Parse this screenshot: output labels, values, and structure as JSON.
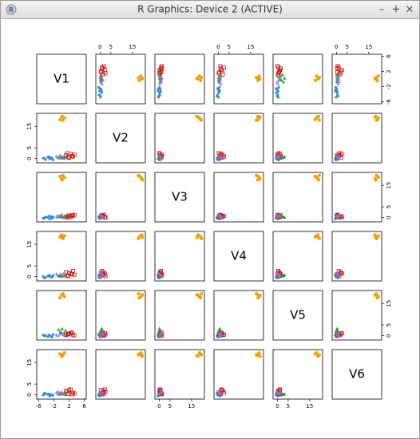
{
  "window": {
    "title": "R Graphics: Device 2 (ACTIVE)",
    "controls": [
      "–",
      "+",
      "×"
    ]
  },
  "chart_data": {
    "type": "pairs",
    "variables": [
      "V1",
      "V2",
      "V3",
      "V4",
      "V5",
      "V6"
    ],
    "lims": [
      [
        -6.5,
        6.5
      ],
      [
        -2,
        21
      ],
      [
        -2,
        21
      ],
      [
        -2,
        21
      ],
      [
        -2,
        21
      ],
      [
        -2,
        21
      ]
    ],
    "ticks": [
      [
        -6,
        -2,
        2,
        6
      ],
      [
        0,
        5,
        15
      ],
      [
        0,
        5,
        15
      ],
      [
        0,
        5,
        15
      ],
      [
        0,
        5,
        15
      ],
      [
        0,
        5,
        15
      ]
    ],
    "groups": [
      {
        "color": "#2c8de0",
        "shape": "circle",
        "points": [
          [
            -4.8,
            0.2,
            -0.3,
            0.1,
            0.4,
            -0.2
          ],
          [
            -4.2,
            -0.5,
            0.3,
            -0.4,
            0.1,
            0.5
          ],
          [
            -3.6,
            0.6,
            0.1,
            0.3,
            -0.5,
            0.2
          ],
          [
            -3.1,
            -0.2,
            -0.6,
            0.7,
            0.2,
            -0.6
          ],
          [
            -2.7,
            0.4,
            0.5,
            -0.1,
            -0.3,
            0.1
          ],
          [
            -2.2,
            -0.7,
            0.2,
            0.5,
            0.6,
            -0.3
          ],
          [
            -4.5,
            0.1,
            -0.2,
            -0.6,
            -0.1,
            0.7
          ],
          [
            -3.3,
            0.8,
            0.7,
            0.2,
            0.3,
            0.4
          ],
          [
            -2.5,
            0.0,
            -0.4,
            -0.3,
            -0.6,
            -0.1
          ]
        ]
      },
      {
        "color": "#d01010",
        "shape": "square-open",
        "points": [
          [
            1.2,
            1.5,
            0.4,
            2.1,
            0.3,
            1.8
          ],
          [
            1.8,
            0.6,
            1.0,
            0.5,
            0.8,
            0.4
          ],
          [
            2.4,
            2.2,
            0.2,
            1.4,
            1.2,
            2.5
          ],
          [
            3.0,
            0.9,
            0.8,
            2.6,
            0.5,
            1.0
          ],
          [
            3.4,
            1.8,
            1.3,
            0.9,
            0.1,
            0.6
          ],
          [
            2.0,
            0.3,
            0.6,
            1.8,
            1.0,
            2.2
          ],
          [
            1.5,
            2.5,
            0.1,
            0.2,
            0.6,
            1.3
          ],
          [
            2.8,
            1.2,
            1.1,
            1.1,
            1.5,
            0.2
          ]
        ]
      },
      {
        "color": "#22a022",
        "shape": "triangle",
        "points": [
          [
            -0.8,
            0.5,
            0.3,
            0.4,
            2.8,
            0.2
          ],
          [
            -0.3,
            0.2,
            0.8,
            0.1,
            1.9,
            0.6
          ],
          [
            0.2,
            0.8,
            0.1,
            0.7,
            3.3,
            0.3
          ],
          [
            0.7,
            0.1,
            0.6,
            0.3,
            1.4,
            0.8
          ],
          [
            1.1,
            0.6,
            0.4,
            0.9,
            2.4,
            0.1
          ],
          [
            0.0,
            0.3,
            0.9,
            0.2,
            1.1,
            0.5
          ]
        ]
      },
      {
        "color": "#8a6fd6",
        "shape": "cross",
        "points": [
          [
            -1.4,
            0.9,
            0.2,
            1.2,
            0.3,
            0.8
          ],
          [
            -0.9,
            0.3,
            1.0,
            0.4,
            -0.2,
            1.3
          ],
          [
            -0.4,
            1.3,
            0.5,
            0.9,
            0.6,
            0.1
          ],
          [
            0.1,
            0.0,
            1.4,
            0.0,
            0.9,
            0.9
          ],
          [
            0.6,
            0.7,
            0.0,
            1.5,
            0.1,
            0.4
          ],
          [
            -0.2,
            1.1,
            0.7,
            0.6,
            1.2,
            1.1
          ]
        ]
      },
      {
        "color": "#f0a000",
        "shape": "square",
        "points": [
          [
            -0.4,
            18.1,
            19.2,
            18.5,
            17.6,
            19.0
          ],
          [
            0.0,
            19.3,
            18.0,
            19.4,
            18.8,
            17.9
          ],
          [
            0.4,
            17.8,
            19.6,
            17.7,
            19.5,
            18.6
          ],
          [
            0.8,
            18.9,
            18.7,
            19.0,
            18.2,
            19.5
          ],
          [
            0.2,
            19.6,
            17.5,
            18.3,
            19.1,
            18.2
          ]
        ]
      }
    ]
  }
}
